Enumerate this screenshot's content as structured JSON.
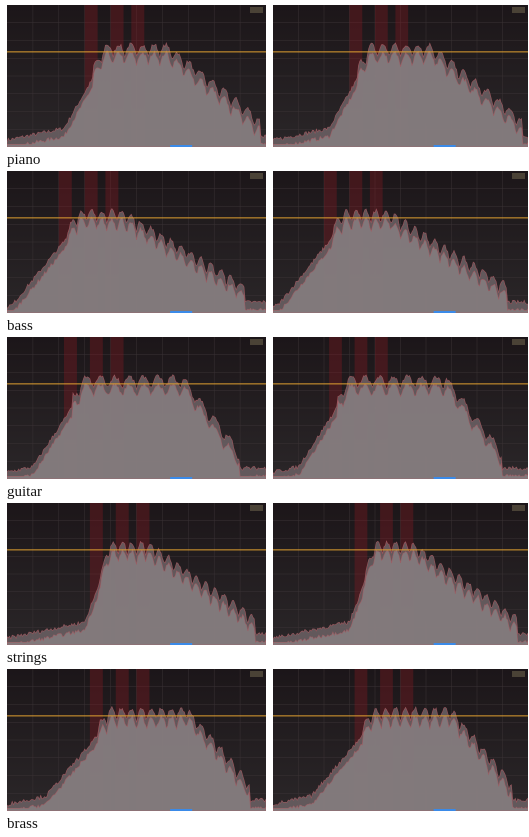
{
  "rows": [
    {
      "label": "piano"
    },
    {
      "label": "bass"
    },
    {
      "label": "guitar"
    },
    {
      "label": "strings"
    },
    {
      "label": "brass"
    }
  ]
}
